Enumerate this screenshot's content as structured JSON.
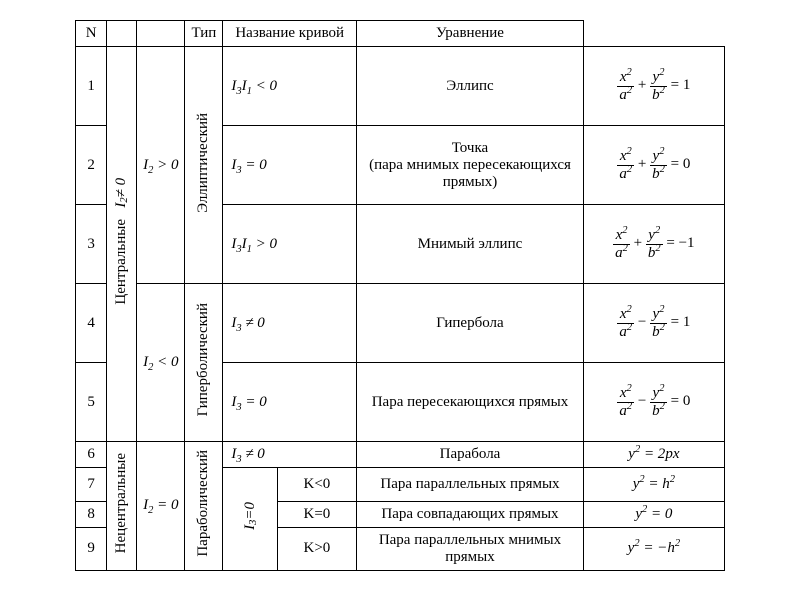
{
  "table": {
    "border_color": "#000000",
    "background_color": "#ffffff",
    "text_color": "#000000",
    "font_family": "Times New Roman",
    "base_fontsize_pt": 12,
    "headers": {
      "n": "N",
      "type": "Тип",
      "name": "Название кривой",
      "equation": "Уравнение"
    },
    "group_central": {
      "label": "Центральные",
      "condition_tex": "I_2 \\ne 0",
      "condition_html": "I<sub>2</sub>≠ 0"
    },
    "group_noncentral": {
      "label": "Нецентральные"
    },
    "i2_pos": "I<sub>2</sub> &gt; 0",
    "i2_neg": "I<sub>2</sub> &lt; 0",
    "i2_zero": "I<sub>2</sub> = 0",
    "type_elliptic": "Эллиптический",
    "type_hyperbolic": "Гиперболический",
    "type_parabolic": "Параболический",
    "i3_zero_sub": "I<sub>3</sub>=0",
    "rows": [
      {
        "n": "1",
        "cond": "I<sub>3</sub>I<sub>1</sub> &lt; 0",
        "name": "Эллипс",
        "eq_type": "xyab",
        "sign": "+",
        "rhs": "1"
      },
      {
        "n": "2",
        "cond": "I<sub>3</sub> = 0",
        "name": "Точка<br>(пара мнимых пересекающихся<br>прямых)",
        "eq_type": "xyab",
        "sign": "+",
        "rhs": "0"
      },
      {
        "n": "3",
        "cond": "I<sub>3</sub>I<sub>1</sub> &gt; 0",
        "name": "Мнимый эллипс",
        "eq_type": "xyab",
        "sign": "+",
        "rhs": "−1"
      },
      {
        "n": "4",
        "cond": "I<sub>3</sub> ≠ 0",
        "name": "Гипербола",
        "eq_type": "xyab",
        "sign": "−",
        "rhs": "1"
      },
      {
        "n": "5",
        "cond": "I<sub>3</sub> = 0",
        "name": "Пара пересекающихся прямых",
        "eq_type": "xyab",
        "sign": "−",
        "rhs": "0"
      },
      {
        "n": "6",
        "cond": "I<sub>3</sub> ≠ 0",
        "name": "Парабола",
        "eq_type": "plain",
        "eq": "y<sup>2</sup> = 2<i>p</i><i>x</i>"
      },
      {
        "n": "7",
        "k": "K&lt;0",
        "name": "Пара параллельных прямых",
        "eq_type": "plain",
        "eq": "y<sup>2</sup> = h<sup>2</sup>"
      },
      {
        "n": "8",
        "k": "K=0",
        "name": "Пара совпадающих прямых",
        "eq_type": "plain",
        "eq": "y<sup>2</sup> = 0"
      },
      {
        "n": "9",
        "k": "K&gt;0",
        "name": "Пара параллельных мнимых<br>прямых",
        "eq_type": "plain",
        "eq": "y<sup>2</sup> = −h<sup>2</sup>"
      }
    ]
  }
}
